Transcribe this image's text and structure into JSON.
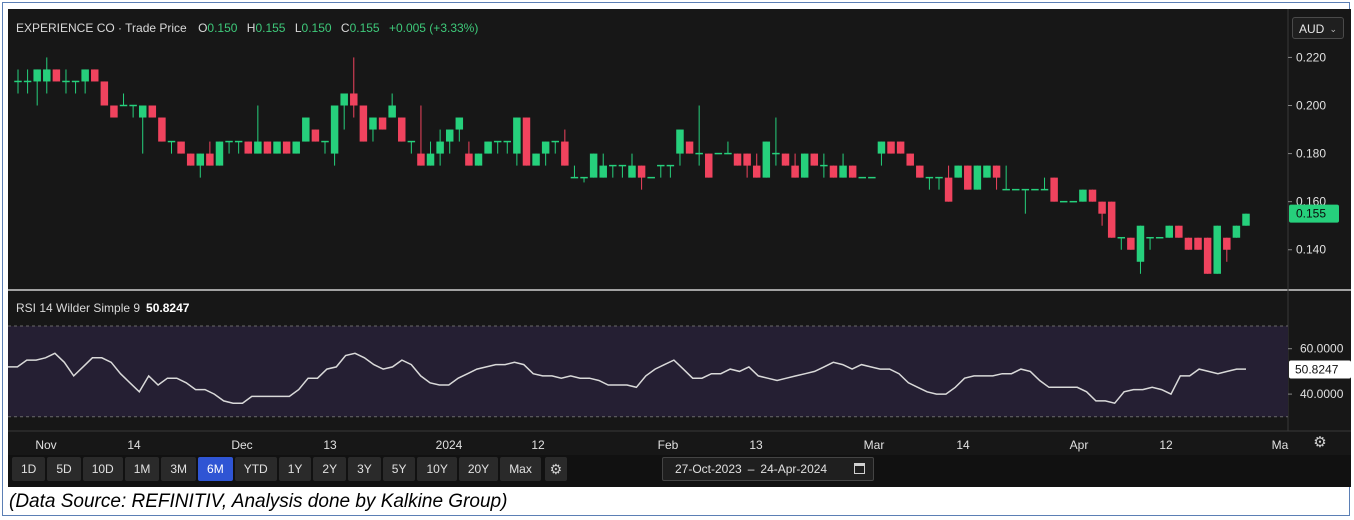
{
  "header": {
    "instrument": "EXPERIENCE CO · Trade Price",
    "open_label": "O",
    "open": "0.150",
    "high_label": "H",
    "high": "0.155",
    "low_label": "L",
    "low": "0.150",
    "close_label": "C",
    "close": "0.155",
    "change": "+0.005 (+3.33%)"
  },
  "currency": {
    "selected": "AUD"
  },
  "rsi": {
    "label": "RSI 14 Wilder Simple 9",
    "value": "50.8247"
  },
  "price_badge": "0.155",
  "time_ranges": [
    "1D",
    "5D",
    "10D",
    "1M",
    "3M",
    "6M",
    "YTD",
    "1Y",
    "2Y",
    "3Y",
    "5Y",
    "10Y",
    "20Y",
    "Max"
  ],
  "active_range": "6M",
  "date_range": {
    "from": "27-Oct-2023",
    "to": "24-Apr-2024"
  },
  "caption": "(Data Source: REFINITIV, Analysis done by Kalkine Group)",
  "colors": {
    "up": "#26d07c",
    "down": "#f0435e",
    "background": "#171717",
    "rsi_band": "#251f33",
    "rsi_line": "#d9d9d9",
    "active": "#2f55d4"
  },
  "chart_data": [
    {
      "type": "candlestick",
      "series_name": "",
      "y_ticks": [
        0.22,
        0.2,
        0.18,
        0.16,
        0.14
      ],
      "ylim": [
        0.127,
        0.226
      ],
      "x_tick_labels": [
        "Nov",
        "14",
        "Dec",
        "13",
        "2024",
        "12",
        "Feb",
        "13",
        "Mar",
        "14",
        "Apr",
        "12",
        "Ma"
      ],
      "candles": [
        {
          "o": 0.21,
          "h": 0.215,
          "l": 0.205,
          "c": 0.21
        },
        {
          "o": 0.21,
          "h": 0.215,
          "l": 0.205,
          "c": 0.21
        },
        {
          "o": 0.21,
          "h": 0.215,
          "l": 0.2,
          "c": 0.215
        },
        {
          "o": 0.21,
          "h": 0.22,
          "l": 0.205,
          "c": 0.215
        },
        {
          "o": 0.215,
          "h": 0.215,
          "l": 0.21,
          "c": 0.21
        },
        {
          "o": 0.21,
          "h": 0.215,
          "l": 0.205,
          "c": 0.21
        },
        {
          "o": 0.21,
          "h": 0.21,
          "l": 0.205,
          "c": 0.21
        },
        {
          "o": 0.21,
          "h": 0.215,
          "l": 0.205,
          "c": 0.215
        },
        {
          "o": 0.215,
          "h": 0.215,
          "l": 0.21,
          "c": 0.21
        },
        {
          "o": 0.21,
          "h": 0.21,
          "l": 0.2,
          "c": 0.2
        },
        {
          "o": 0.2,
          "h": 0.2,
          "l": 0.195,
          "c": 0.195
        },
        {
          "o": 0.2,
          "h": 0.205,
          "l": 0.2,
          "c": 0.2
        },
        {
          "o": 0.2,
          "h": 0.2,
          "l": 0.195,
          "c": 0.2
        },
        {
          "o": 0.195,
          "h": 0.2,
          "l": 0.18,
          "c": 0.2
        },
        {
          "o": 0.2,
          "h": 0.2,
          "l": 0.195,
          "c": 0.195
        },
        {
          "o": 0.195,
          "h": 0.195,
          "l": 0.185,
          "c": 0.185
        },
        {
          "o": 0.185,
          "h": 0.185,
          "l": 0.18,
          "c": 0.185
        },
        {
          "o": 0.185,
          "h": 0.185,
          "l": 0.18,
          "c": 0.18
        },
        {
          "o": 0.18,
          "h": 0.18,
          "l": 0.175,
          "c": 0.175
        },
        {
          "o": 0.175,
          "h": 0.18,
          "l": 0.17,
          "c": 0.18
        },
        {
          "o": 0.18,
          "h": 0.185,
          "l": 0.175,
          "c": 0.175
        },
        {
          "o": 0.175,
          "h": 0.185,
          "l": 0.175,
          "c": 0.185
        },
        {
          "o": 0.185,
          "h": 0.185,
          "l": 0.18,
          "c": 0.185
        },
        {
          "o": 0.185,
          "h": 0.185,
          "l": 0.18,
          "c": 0.185
        },
        {
          "o": 0.185,
          "h": 0.185,
          "l": 0.18,
          "c": 0.18
        },
        {
          "o": 0.18,
          "h": 0.2,
          "l": 0.18,
          "c": 0.185
        },
        {
          "o": 0.185,
          "h": 0.185,
          "l": 0.18,
          "c": 0.18
        },
        {
          "o": 0.18,
          "h": 0.185,
          "l": 0.18,
          "c": 0.185
        },
        {
          "o": 0.185,
          "h": 0.185,
          "l": 0.18,
          "c": 0.18
        },
        {
          "o": 0.18,
          "h": 0.185,
          "l": 0.18,
          "c": 0.185
        },
        {
          "o": 0.185,
          "h": 0.195,
          "l": 0.185,
          "c": 0.195
        },
        {
          "o": 0.19,
          "h": 0.19,
          "l": 0.185,
          "c": 0.185
        },
        {
          "o": 0.185,
          "h": 0.185,
          "l": 0.18,
          "c": 0.185
        },
        {
          "o": 0.18,
          "h": 0.2,
          "l": 0.175,
          "c": 0.2
        },
        {
          "o": 0.2,
          "h": 0.205,
          "l": 0.19,
          "c": 0.205
        },
        {
          "o": 0.205,
          "h": 0.22,
          "l": 0.195,
          "c": 0.2
        },
        {
          "o": 0.2,
          "h": 0.2,
          "l": 0.185,
          "c": 0.185
        },
        {
          "o": 0.19,
          "h": 0.195,
          "l": 0.185,
          "c": 0.195
        },
        {
          "o": 0.195,
          "h": 0.195,
          "l": 0.19,
          "c": 0.19
        },
        {
          "o": 0.195,
          "h": 0.205,
          "l": 0.195,
          "c": 0.2
        },
        {
          "o": 0.195,
          "h": 0.195,
          "l": 0.185,
          "c": 0.185
        },
        {
          "o": 0.185,
          "h": 0.185,
          "l": 0.18,
          "c": 0.185
        },
        {
          "o": 0.18,
          "h": 0.2,
          "l": 0.175,
          "c": 0.175
        },
        {
          "o": 0.175,
          "h": 0.185,
          "l": 0.175,
          "c": 0.18
        },
        {
          "o": 0.18,
          "h": 0.19,
          "l": 0.175,
          "c": 0.185
        },
        {
          "o": 0.185,
          "h": 0.19,
          "l": 0.18,
          "c": 0.19
        },
        {
          "o": 0.19,
          "h": 0.195,
          "l": 0.185,
          "c": 0.195
        },
        {
          "o": 0.18,
          "h": 0.185,
          "l": 0.175,
          "c": 0.175
        },
        {
          "o": 0.175,
          "h": 0.18,
          "l": 0.175,
          "c": 0.18
        },
        {
          "o": 0.18,
          "h": 0.185,
          "l": 0.18,
          "c": 0.185
        },
        {
          "o": 0.185,
          "h": 0.185,
          "l": 0.18,
          "c": 0.185
        },
        {
          "o": 0.185,
          "h": 0.185,
          "l": 0.18,
          "c": 0.185
        },
        {
          "o": 0.18,
          "h": 0.195,
          "l": 0.175,
          "c": 0.195
        },
        {
          "o": 0.195,
          "h": 0.195,
          "l": 0.175,
          "c": 0.175
        },
        {
          "o": 0.175,
          "h": 0.18,
          "l": 0.175,
          "c": 0.18
        },
        {
          "o": 0.18,
          "h": 0.185,
          "l": 0.175,
          "c": 0.185
        },
        {
          "o": 0.185,
          "h": 0.185,
          "l": 0.18,
          "c": 0.185
        },
        {
          "o": 0.185,
          "h": 0.19,
          "l": 0.175,
          "c": 0.175
        },
        {
          "o": 0.17,
          "h": 0.175,
          "l": 0.17,
          "c": 0.17
        },
        {
          "o": 0.17,
          "h": 0.17,
          "l": 0.168,
          "c": 0.17
        },
        {
          "o": 0.17,
          "h": 0.18,
          "l": 0.17,
          "c": 0.18
        },
        {
          "o": 0.17,
          "h": 0.18,
          "l": 0.17,
          "c": 0.175
        },
        {
          "o": 0.175,
          "h": 0.175,
          "l": 0.17,
          "c": 0.175
        },
        {
          "o": 0.175,
          "h": 0.175,
          "l": 0.17,
          "c": 0.175
        },
        {
          "o": 0.17,
          "h": 0.18,
          "l": 0.17,
          "c": 0.175
        },
        {
          "o": 0.175,
          "h": 0.175,
          "l": 0.165,
          "c": 0.17
        },
        {
          "o": 0.17,
          "h": 0.17,
          "l": 0.17,
          "c": 0.17
        },
        {
          "o": 0.175,
          "h": 0.175,
          "l": 0.17,
          "c": 0.175
        },
        {
          "o": 0.175,
          "h": 0.175,
          "l": 0.17,
          "c": 0.175
        },
        {
          "o": 0.18,
          "h": 0.19,
          "l": 0.175,
          "c": 0.19
        },
        {
          "o": 0.185,
          "h": 0.185,
          "l": 0.18,
          "c": 0.18
        },
        {
          "o": 0.18,
          "h": 0.2,
          "l": 0.175,
          "c": 0.18
        },
        {
          "o": 0.18,
          "h": 0.18,
          "l": 0.17,
          "c": 0.17
        },
        {
          "o": 0.18,
          "h": 0.18,
          "l": 0.18,
          "c": 0.18
        },
        {
          "o": 0.18,
          "h": 0.185,
          "l": 0.18,
          "c": 0.18
        },
        {
          "o": 0.18,
          "h": 0.18,
          "l": 0.175,
          "c": 0.175
        },
        {
          "o": 0.18,
          "h": 0.18,
          "l": 0.17,
          "c": 0.175
        },
        {
          "o": 0.175,
          "h": 0.18,
          "l": 0.17,
          "c": 0.17
        },
        {
          "o": 0.17,
          "h": 0.185,
          "l": 0.17,
          "c": 0.185
        },
        {
          "o": 0.18,
          "h": 0.195,
          "l": 0.175,
          "c": 0.18
        },
        {
          "o": 0.18,
          "h": 0.18,
          "l": 0.175,
          "c": 0.175
        },
        {
          "o": 0.175,
          "h": 0.18,
          "l": 0.17,
          "c": 0.17
        },
        {
          "o": 0.17,
          "h": 0.18,
          "l": 0.17,
          "c": 0.18
        },
        {
          "o": 0.18,
          "h": 0.18,
          "l": 0.175,
          "c": 0.175
        },
        {
          "o": 0.175,
          "h": 0.18,
          "l": 0.17,
          "c": 0.175
        },
        {
          "o": 0.175,
          "h": 0.175,
          "l": 0.17,
          "c": 0.17
        },
        {
          "o": 0.17,
          "h": 0.18,
          "l": 0.17,
          "c": 0.175
        },
        {
          "o": 0.175,
          "h": 0.175,
          "l": 0.17,
          "c": 0.17
        },
        {
          "o": 0.17,
          "h": 0.17,
          "l": 0.17,
          "c": 0.17
        },
        {
          "o": 0.17,
          "h": 0.17,
          "l": 0.17,
          "c": 0.17
        },
        {
          "o": 0.18,
          "h": 0.185,
          "l": 0.175,
          "c": 0.185
        },
        {
          "o": 0.185,
          "h": 0.185,
          "l": 0.18,
          "c": 0.18
        },
        {
          "o": 0.185,
          "h": 0.185,
          "l": 0.18,
          "c": 0.18
        },
        {
          "o": 0.18,
          "h": 0.18,
          "l": 0.175,
          "c": 0.175
        },
        {
          "o": 0.175,
          "h": 0.175,
          "l": 0.17,
          "c": 0.17
        },
        {
          "o": 0.17,
          "h": 0.17,
          "l": 0.165,
          "c": 0.17
        },
        {
          "o": 0.17,
          "h": 0.17,
          "l": 0.165,
          "c": 0.17
        },
        {
          "o": 0.17,
          "h": 0.175,
          "l": 0.16,
          "c": 0.16
        },
        {
          "o": 0.17,
          "h": 0.175,
          "l": 0.17,
          "c": 0.175
        },
        {
          "o": 0.175,
          "h": 0.175,
          "l": 0.165,
          "c": 0.165
        },
        {
          "o": 0.165,
          "h": 0.175,
          "l": 0.165,
          "c": 0.175
        },
        {
          "o": 0.17,
          "h": 0.175,
          "l": 0.17,
          "c": 0.175
        },
        {
          "o": 0.175,
          "h": 0.175,
          "l": 0.165,
          "c": 0.17
        },
        {
          "o": 0.165,
          "h": 0.175,
          "l": 0.165,
          "c": 0.165
        },
        {
          "o": 0.165,
          "h": 0.165,
          "l": 0.165,
          "c": 0.165
        },
        {
          "o": 0.165,
          "h": 0.165,
          "l": 0.155,
          "c": 0.165
        },
        {
          "o": 0.165,
          "h": 0.165,
          "l": 0.165,
          "c": 0.165
        },
        {
          "o": 0.165,
          "h": 0.17,
          "l": 0.165,
          "c": 0.165
        },
        {
          "o": 0.17,
          "h": 0.17,
          "l": 0.16,
          "c": 0.16
        },
        {
          "o": 0.16,
          "h": 0.16,
          "l": 0.16,
          "c": 0.16
        },
        {
          "o": 0.16,
          "h": 0.16,
          "l": 0.16,
          "c": 0.16
        },
        {
          "o": 0.16,
          "h": 0.165,
          "l": 0.16,
          "c": 0.165
        },
        {
          "o": 0.165,
          "h": 0.165,
          "l": 0.16,
          "c": 0.16
        },
        {
          "o": 0.16,
          "h": 0.16,
          "l": 0.15,
          "c": 0.155
        },
        {
          "o": 0.16,
          "h": 0.16,
          "l": 0.145,
          "c": 0.145
        },
        {
          "o": 0.145,
          "h": 0.145,
          "l": 0.14,
          "c": 0.145
        },
        {
          "o": 0.145,
          "h": 0.145,
          "l": 0.14,
          "c": 0.14
        },
        {
          "o": 0.135,
          "h": 0.15,
          "l": 0.13,
          "c": 0.15
        },
        {
          "o": 0.145,
          "h": 0.145,
          "l": 0.14,
          "c": 0.145
        },
        {
          "o": 0.145,
          "h": 0.145,
          "l": 0.145,
          "c": 0.145
        },
        {
          "o": 0.145,
          "h": 0.15,
          "l": 0.145,
          "c": 0.15
        },
        {
          "o": 0.15,
          "h": 0.15,
          "l": 0.145,
          "c": 0.145
        },
        {
          "o": 0.145,
          "h": 0.145,
          "l": 0.14,
          "c": 0.14
        },
        {
          "o": 0.145,
          "h": 0.145,
          "l": 0.14,
          "c": 0.14
        },
        {
          "o": 0.145,
          "h": 0.145,
          "l": 0.13,
          "c": 0.13
        },
        {
          "o": 0.13,
          "h": 0.15,
          "l": 0.13,
          "c": 0.15
        },
        {
          "o": 0.145,
          "h": 0.145,
          "l": 0.135,
          "c": 0.14
        },
        {
          "o": 0.145,
          "h": 0.15,
          "l": 0.145,
          "c": 0.15
        },
        {
          "o": 0.15,
          "h": 0.155,
          "l": 0.15,
          "c": 0.155
        }
      ]
    },
    {
      "type": "line",
      "series_name": "RSI 14 Wilder Simple 9",
      "y_ticks": [
        60,
        40
      ],
      "ylim": [
        25.5,
        77.5
      ],
      "band": [
        70,
        30
      ],
      "last_value": 50.8247,
      "values": [
        52,
        52,
        55,
        55,
        56,
        58,
        54,
        48,
        52,
        56,
        56,
        54,
        49,
        45,
        41,
        48,
        44,
        47,
        47,
        45,
        42,
        42,
        40,
        37,
        36,
        36,
        39,
        39,
        39,
        39,
        39,
        42,
        47,
        47,
        51,
        52,
        57,
        58,
        56,
        53,
        51,
        52,
        55,
        53,
        48,
        45,
        44,
        44,
        47,
        49,
        51,
        52,
        53,
        53,
        54,
        53,
        49,
        48,
        48,
        47,
        48,
        47,
        47,
        46,
        44,
        44,
        44,
        43,
        48,
        51,
        53,
        55,
        51,
        47,
        47,
        49,
        49,
        51,
        50,
        52,
        48,
        47,
        46,
        47,
        48,
        49,
        50,
        52,
        54,
        53,
        51,
        53,
        52,
        51,
        51,
        49,
        45,
        43,
        41,
        40,
        40,
        43,
        47,
        48,
        48,
        48,
        49,
        49,
        51,
        50,
        46,
        43,
        43,
        43,
        43,
        41,
        37,
        37,
        36,
        41,
        42,
        42,
        43,
        42,
        40,
        48,
        48,
        51,
        50,
        49,
        50,
        51,
        51
      ],
      "x_tick_labels": [
        "Nov",
        "14",
        "Dec",
        "13",
        "2024",
        "12",
        "Feb",
        "13",
        "Mar",
        "14",
        "Apr",
        "12",
        "Ma"
      ]
    }
  ]
}
